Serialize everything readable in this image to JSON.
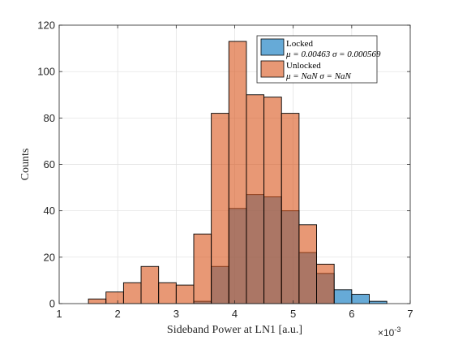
{
  "chart_data": {
    "type": "bar",
    "xlabel": "Sideband Power at LN1 [a.u.]",
    "ylabel": "Counts",
    "x_exponent_label": "×10",
    "x_exponent_power": "-3",
    "xlim": [
      1,
      7
    ],
    "ylim": [
      0,
      120
    ],
    "xticks": [
      1,
      2,
      3,
      4,
      5,
      6,
      7
    ],
    "yticks": [
      0,
      20,
      40,
      60,
      80,
      100,
      120
    ],
    "grid": true,
    "legend_position": "top-right",
    "bin_width": 0.3,
    "series": [
      {
        "name": "Locked",
        "stat_line": "μ = 0.00463 σ = 0.000569",
        "color": "#0072BD",
        "bins": [
          {
            "x0": 3.3,
            "count": 1
          },
          {
            "x0": 3.6,
            "count": 16
          },
          {
            "x0": 3.9,
            "count": 41
          },
          {
            "x0": 4.2,
            "count": 47
          },
          {
            "x0": 4.5,
            "count": 46
          },
          {
            "x0": 4.8,
            "count": 40
          },
          {
            "x0": 5.1,
            "count": 22
          },
          {
            "x0": 5.4,
            "count": 13
          },
          {
            "x0": 5.7,
            "count": 6
          },
          {
            "x0": 6.0,
            "count": 4
          },
          {
            "x0": 6.3,
            "count": 1
          }
        ]
      },
      {
        "name": "Unlocked",
        "stat_line": "μ = NaN σ = NaN",
        "color": "#D95319",
        "bins": [
          {
            "x0": 1.5,
            "count": 2
          },
          {
            "x0": 1.8,
            "count": 5
          },
          {
            "x0": 2.1,
            "count": 9
          },
          {
            "x0": 2.4,
            "count": 16
          },
          {
            "x0": 2.7,
            "count": 9
          },
          {
            "x0": 3.0,
            "count": 8
          },
          {
            "x0": 3.3,
            "count": 30
          },
          {
            "x0": 3.6,
            "count": 82
          },
          {
            "x0": 3.9,
            "count": 113
          },
          {
            "x0": 4.2,
            "count": 90
          },
          {
            "x0": 4.5,
            "count": 89
          },
          {
            "x0": 4.8,
            "count": 82
          },
          {
            "x0": 5.1,
            "count": 34
          },
          {
            "x0": 5.4,
            "count": 17
          }
        ]
      }
    ]
  }
}
